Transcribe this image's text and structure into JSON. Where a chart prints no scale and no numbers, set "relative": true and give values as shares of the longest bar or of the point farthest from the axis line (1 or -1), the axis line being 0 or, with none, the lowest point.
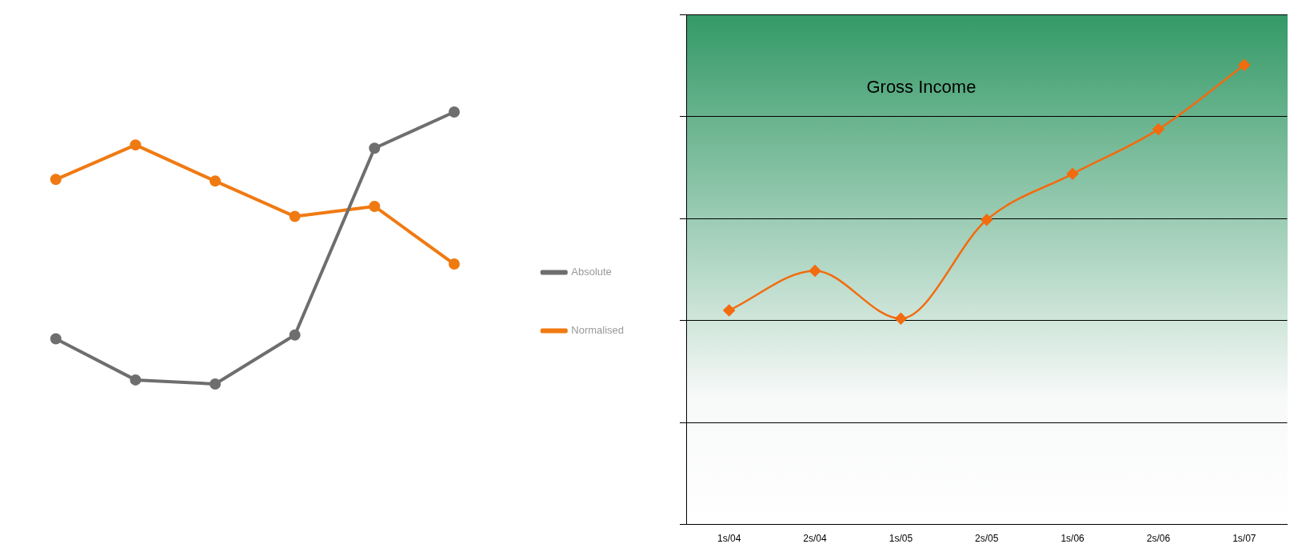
{
  "chart_data": [
    {
      "type": "line",
      "relative": true,
      "categories": [
        null,
        null,
        null,
        null,
        null,
        null
      ],
      "legend": "bottom right",
      "marker": "circle",
      "grid": false,
      "series": [
        {
          "name": "Absolute",
          "color": "#6e6e6e",
          "values": [
            0.166,
            0.015,
            0,
            0.18,
            0.867,
            1
          ]
        },
        {
          "name": "Normalised",
          "color": "#f07a12",
          "values": [
            0.752,
            0.879,
            0.746,
            0.616,
            0.653,
            0.441
          ]
        }
      ]
    },
    {
      "type": "line",
      "title": "Gross Income",
      "categories": [
        "1s/04",
        "2s/04",
        "1s/05",
        "2s/05",
        "1s/06",
        "2s/06",
        "1s/07"
      ],
      "relative": true,
      "grid": "y",
      "marker": "diamond",
      "legend": false,
      "series": [
        {
          "color": "#f26b0f",
          "values": [
            0.466,
            0.552,
            0.448,
            0.663,
            0.763,
            0.86,
            1
          ]
        }
      ]
    }
  ]
}
